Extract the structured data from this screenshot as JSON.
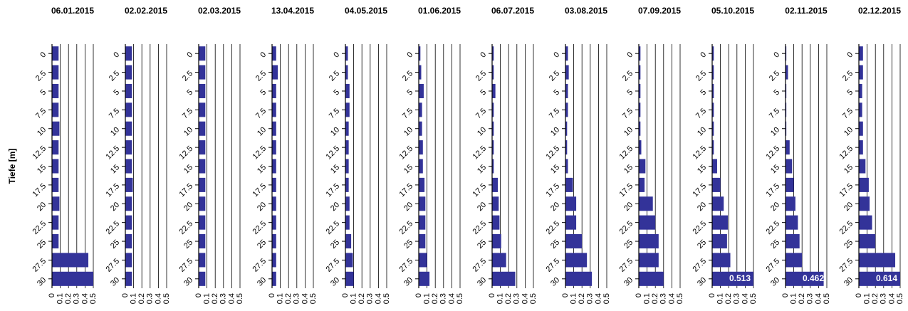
{
  "chart_data": [
    {
      "type": "bar",
      "title": "06.01.2015",
      "ylabel": "Tiefe [m]",
      "categories": [
        "0",
        "2.5",
        "5",
        "7.5",
        "10",
        "12.5",
        "15",
        "17.5",
        "20",
        "22.5",
        "25",
        "27.5",
        "30"
      ],
      "values": [
        0.08,
        0.08,
        0.08,
        0.08,
        0.09,
        0.08,
        0.08,
        0.08,
        0.09,
        0.08,
        0.08,
        0.44,
        0.5
      ],
      "color": "#333399",
      "xlim": [
        0,
        0.5
      ],
      "xticks": [
        0,
        0.1,
        0.2,
        0.3,
        0.4,
        0.5
      ],
      "grid": true
    },
    {
      "type": "bar",
      "title": "02.02.2015",
      "categories": [
        "0",
        "2.5",
        "5",
        "7.5",
        "10",
        "12.5",
        "15",
        "17.5",
        "20",
        "22.5",
        "25",
        "27.5",
        "30"
      ],
      "values": [
        0.08,
        0.08,
        0.08,
        0.08,
        0.08,
        0.08,
        0.08,
        0.09,
        0.08,
        0.08,
        0.08,
        0.08,
        0.08
      ],
      "color": "#333399",
      "xlim": [
        0,
        0.5
      ],
      "xticks": [
        0,
        0.1,
        0.2,
        0.3,
        0.4,
        0.5
      ],
      "grid": true
    },
    {
      "type": "bar",
      "title": "02.03.2015",
      "categories": [
        "0",
        "2.5",
        "5",
        "7.5",
        "10",
        "12.5",
        "15",
        "17.5",
        "20",
        "22.5",
        "25",
        "27.5",
        "30"
      ],
      "values": [
        0.08,
        0.08,
        0.08,
        0.08,
        0.08,
        0.08,
        0.08,
        0.08,
        0.08,
        0.08,
        0.08,
        0.08,
        0.08
      ],
      "color": "#333399",
      "xlim": [
        0,
        0.5
      ],
      "xticks": [
        0,
        0.1,
        0.2,
        0.3,
        0.4,
        0.5
      ],
      "grid": true
    },
    {
      "type": "bar",
      "title": "13.04.2015",
      "categories": [
        "0",
        "2.5",
        "5",
        "7.5",
        "10",
        "12.5",
        "15",
        "17.5",
        "20",
        "22.5",
        "25",
        "27.5",
        "30"
      ],
      "values": [
        0.05,
        0.07,
        0.05,
        0.05,
        0.05,
        0.05,
        0.05,
        0.05,
        0.05,
        0.05,
        0.05,
        0.05,
        0.05
      ],
      "color": "#333399",
      "xlim": [
        0,
        0.5
      ],
      "xticks": [
        0,
        0.1,
        0.2,
        0.3,
        0.4,
        0.5
      ],
      "grid": true
    },
    {
      "type": "bar",
      "title": "04.05.2015",
      "categories": [
        "0",
        "2.5",
        "5",
        "7.5",
        "10",
        "12.5",
        "15",
        "17.5",
        "20",
        "22.5",
        "25",
        "27.5",
        "30"
      ],
      "values": [
        0.03,
        0.03,
        0.05,
        0.05,
        0.04,
        0.04,
        0.04,
        0.04,
        0.05,
        0.05,
        0.07,
        0.09,
        0.1
      ],
      "color": "#333399",
      "xlim": [
        0,
        0.5
      ],
      "xticks": [
        0,
        0.1,
        0.2,
        0.3,
        0.4,
        0.5
      ],
      "grid": true
    },
    {
      "type": "bar",
      "title": "01.06.2015",
      "categories": [
        "0",
        "2.5",
        "5",
        "7.5",
        "10",
        "12.5",
        "15",
        "17.5",
        "20",
        "22.5",
        "25",
        "27.5",
        "30"
      ],
      "values": [
        0.02,
        0.03,
        0.06,
        0.04,
        0.04,
        0.05,
        0.05,
        0.07,
        0.08,
        0.08,
        0.08,
        0.1,
        0.13
      ],
      "color": "#333399",
      "xlim": [
        0,
        0.5
      ],
      "xticks": [
        0,
        0.1,
        0.2,
        0.3,
        0.4,
        0.5
      ],
      "grid": true
    },
    {
      "type": "bar",
      "title": "06.07.2015",
      "categories": [
        "0",
        "2.5",
        "5",
        "7.5",
        "10",
        "12.5",
        "15",
        "17.5",
        "20",
        "22.5",
        "25",
        "27.5",
        "30"
      ],
      "values": [
        0.02,
        0.02,
        0.04,
        0.02,
        0.02,
        0.02,
        0.02,
        0.07,
        0.08,
        0.09,
        0.11,
        0.17,
        0.28
      ],
      "color": "#333399",
      "xlim": [
        0,
        0.5
      ],
      "xticks": [
        0,
        0.1,
        0.2,
        0.3,
        0.4,
        0.5
      ],
      "grid": true
    },
    {
      "type": "bar",
      "title": "03.08.2015",
      "categories": [
        "0",
        "2.5",
        "5",
        "7.5",
        "10",
        "12.5",
        "15",
        "17.5",
        "20",
        "22.5",
        "25",
        "27.5",
        "30"
      ],
      "values": [
        0.03,
        0.04,
        0.03,
        0.03,
        0.02,
        0.02,
        0.03,
        0.09,
        0.13,
        0.13,
        0.2,
        0.26,
        0.32
      ],
      "color": "#333399",
      "xlim": [
        0,
        0.5
      ],
      "xticks": [
        0,
        0.1,
        0.2,
        0.3,
        0.4,
        0.5
      ],
      "grid": true
    },
    {
      "type": "bar",
      "title": "07.09.2015",
      "categories": [
        "0",
        "2.5",
        "5",
        "7.5",
        "10",
        "12.5",
        "15",
        "17.5",
        "20",
        "22.5",
        "25",
        "27.5",
        "30"
      ],
      "values": [
        0.02,
        0.02,
        0.02,
        0.02,
        0.02,
        0.03,
        0.08,
        0.07,
        0.17,
        0.2,
        0.24,
        0.24,
        0.3
      ],
      "color": "#333399",
      "xlim": [
        0,
        0.5
      ],
      "xticks": [
        0,
        0.1,
        0.2,
        0.3,
        0.4,
        0.5
      ],
      "grid": true
    },
    {
      "type": "bar",
      "title": "05.10.2015",
      "categories": [
        "0",
        "2.5",
        "5",
        "7.5",
        "10",
        "12.5",
        "15",
        "17.5",
        "20",
        "22.5",
        "25",
        "27.5",
        "30"
      ],
      "values": [
        0.02,
        0.02,
        0.02,
        0.02,
        0.02,
        0.02,
        0.06,
        0.1,
        0.14,
        0.19,
        0.18,
        0.22,
        0.513
      ],
      "value_labels": [
        null,
        null,
        null,
        null,
        null,
        null,
        null,
        null,
        null,
        null,
        null,
        null,
        "0.513"
      ],
      "color": "#333399",
      "xlim": [
        0,
        0.5
      ],
      "xticks": [
        0,
        0.1,
        0.2,
        0.3,
        0.4,
        0.5
      ],
      "grid": true
    },
    {
      "type": "bar",
      "title": "02.11.2015",
      "categories": [
        "0",
        "2.5",
        "5",
        "7.5",
        "10",
        "12.5",
        "15",
        "17.5",
        "20",
        "22.5",
        "25",
        "27.5",
        "30"
      ],
      "values": [
        0.01,
        0.03,
        0.01,
        0.01,
        0.01,
        0.05,
        0.08,
        0.1,
        0.12,
        0.15,
        0.17,
        0.2,
        0.462
      ],
      "value_labels": [
        null,
        null,
        null,
        null,
        null,
        null,
        null,
        null,
        null,
        null,
        null,
        null,
        "0.462"
      ],
      "color": "#333399",
      "xlim": [
        0,
        0.5
      ],
      "xticks": [
        0,
        0.1,
        0.2,
        0.3,
        0.4,
        0.5
      ],
      "grid": true
    },
    {
      "type": "bar",
      "title": "02.12.2015",
      "categories": [
        "0",
        "2.5",
        "5",
        "7.5",
        "10",
        "12.5",
        "15",
        "17.5",
        "20",
        "22.5",
        "25",
        "27.5",
        "30"
      ],
      "values": [
        0.05,
        0.05,
        0.04,
        0.04,
        0.05,
        0.05,
        0.08,
        0.12,
        0.13,
        0.16,
        0.2,
        0.44,
        0.614
      ],
      "value_labels": [
        null,
        null,
        null,
        null,
        null,
        null,
        null,
        null,
        null,
        null,
        null,
        null,
        "0.614"
      ],
      "color": "#333399",
      "xlim": [
        0,
        0.5
      ],
      "xticks": [
        0,
        0.1,
        0.2,
        0.3,
        0.4,
        0.5
      ],
      "grid": true
    }
  ]
}
